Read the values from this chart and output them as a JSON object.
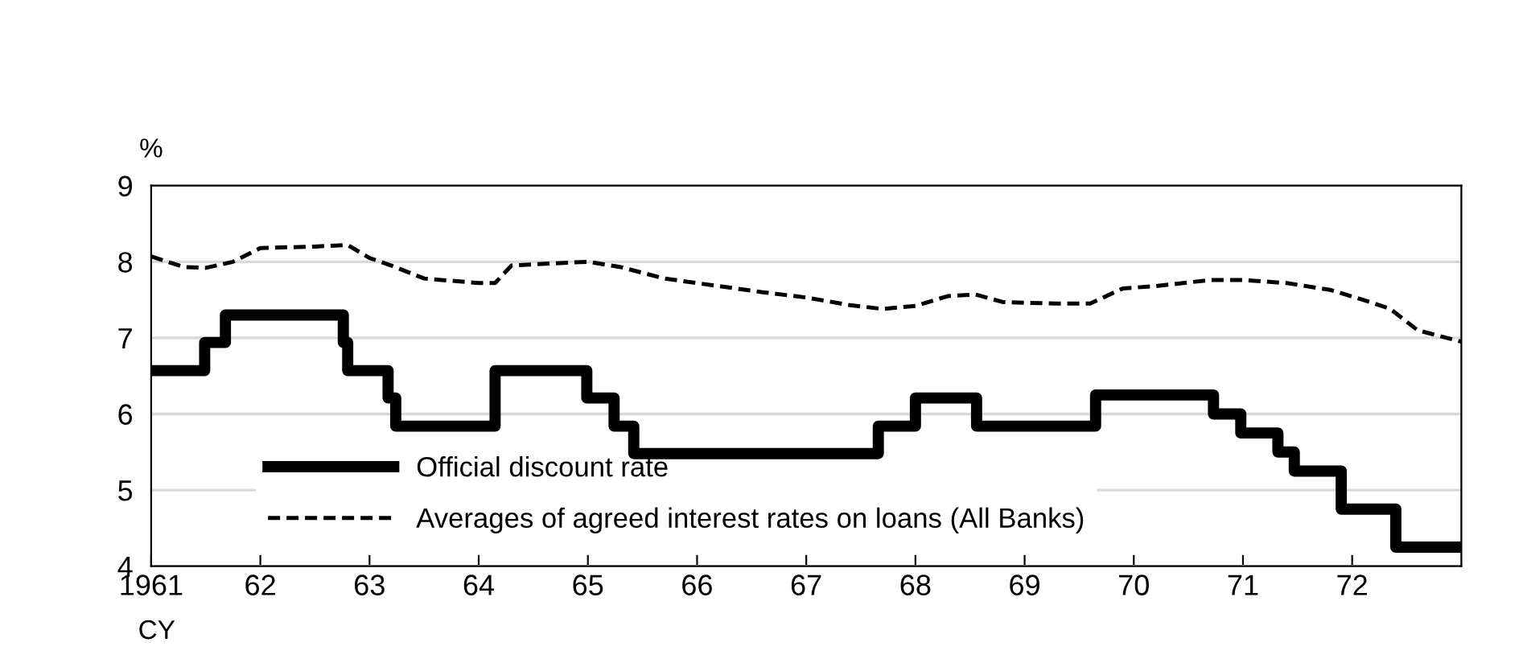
{
  "chart_data": {
    "type": "line",
    "xlabel": "CY",
    "ylabel": "%",
    "xlim": [
      1961,
      1973
    ],
    "ylim": [
      4,
      9
    ],
    "xticks": [
      1961,
      {
        "value": 1962,
        "label": "62"
      },
      {
        "value": 1963,
        "label": "63"
      },
      {
        "value": 1964,
        "label": "64"
      },
      {
        "value": 1965,
        "label": "65"
      },
      {
        "value": 1966,
        "label": "66"
      },
      {
        "value": 1967,
        "label": "67"
      },
      {
        "value": 1968,
        "label": "68"
      },
      {
        "value": 1969,
        "label": "69"
      },
      {
        "value": 1970,
        "label": "70"
      },
      {
        "value": 1971,
        "label": "71"
      },
      {
        "value": 1972,
        "label": "72"
      }
    ],
    "yticks": [
      4,
      5,
      6,
      7,
      8,
      9
    ],
    "grid": "y",
    "legend": "bottom left",
    "series": [
      {
        "name": "Official discount rate",
        "type": "step",
        "color": "#000000",
        "line_style": "solid",
        "x": [
          1961,
          1961.49,
          1961.68,
          1962.76,
          1962.8,
          1963.17,
          1963.24,
          1964.15,
          1964.99,
          1965.24,
          1965.42,
          1967.66,
          1968.0,
          1968.56,
          1969.65,
          1970.73,
          1970.98,
          1971.32,
          1971.47,
          1971.9,
          1972.4,
          1973
        ],
        "values": [
          6.57,
          6.94,
          7.3,
          6.94,
          6.57,
          6.21,
          5.84,
          6.57,
          6.21,
          5.84,
          5.48,
          5.84,
          6.21,
          5.84,
          6.25,
          6.0,
          5.75,
          5.5,
          5.25,
          4.75,
          4.25,
          4.25
        ]
      },
      {
        "name": "Averages of agreed interest rates on loans (All Banks)",
        "color": "#000000",
        "line_style": "dashed",
        "x": [
          1961,
          1961.3,
          1961.5,
          1961.75,
          1962,
          1962.5,
          1962.8,
          1963.0,
          1963.2,
          1963.5,
          1964.0,
          1964.15,
          1964.3,
          1964.7,
          1965.0,
          1965.3,
          1965.7,
          1966.2,
          1966.6,
          1967.0,
          1967.4,
          1967.7,
          1968.0,
          1968.3,
          1968.55,
          1968.8,
          1969.3,
          1969.6,
          1969.9,
          1970.2,
          1970.7,
          1971.0,
          1971.4,
          1971.8,
          1972.1,
          1972.35,
          1972.6,
          1973
        ],
        "values": [
          8.07,
          7.93,
          7.92,
          8.0,
          8.18,
          8.2,
          8.22,
          8.05,
          7.95,
          7.78,
          7.72,
          7.72,
          7.95,
          7.98,
          8.0,
          7.93,
          7.78,
          7.68,
          7.6,
          7.53,
          7.43,
          7.38,
          7.42,
          7.55,
          7.57,
          7.47,
          7.45,
          7.45,
          7.65,
          7.68,
          7.76,
          7.76,
          7.72,
          7.63,
          7.5,
          7.38,
          7.1,
          6.95
        ]
      }
    ]
  }
}
